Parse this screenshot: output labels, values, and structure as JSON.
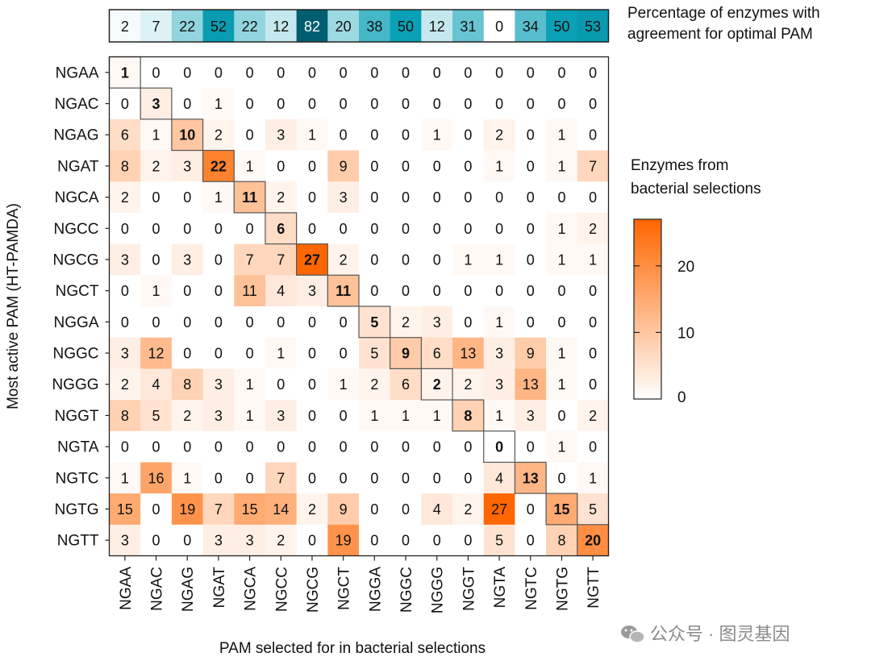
{
  "chart_data": {
    "type": "heatmap",
    "xlabel": "PAM selected for in bacterial selections",
    "ylabel": "Most active PAM (HT-PAMDA)",
    "categories": [
      "NGAA",
      "NGAC",
      "NGAG",
      "NGAT",
      "NGCA",
      "NGCC",
      "NGCG",
      "NGCT",
      "NGGA",
      "NGGC",
      "NGGG",
      "NGGT",
      "NGTA",
      "NGTC",
      "NGTG",
      "NGTT"
    ],
    "matrix": [
      [
        1,
        0,
        0,
        0,
        0,
        0,
        0,
        0,
        0,
        0,
        0,
        0,
        0,
        0,
        0,
        0
      ],
      [
        0,
        3,
        0,
        1,
        0,
        0,
        0,
        0,
        0,
        0,
        0,
        0,
        0,
        0,
        0,
        0
      ],
      [
        6,
        1,
        10,
        2,
        0,
        3,
        1,
        0,
        0,
        0,
        1,
        0,
        2,
        0,
        1,
        0
      ],
      [
        8,
        2,
        3,
        22,
        1,
        0,
        0,
        9,
        0,
        0,
        0,
        0,
        1,
        0,
        1,
        7
      ],
      [
        2,
        0,
        0,
        1,
        11,
        2,
        0,
        3,
        0,
        0,
        0,
        0,
        0,
        0,
        0,
        0
      ],
      [
        0,
        0,
        0,
        0,
        0,
        6,
        0,
        0,
        0,
        0,
        0,
        0,
        0,
        0,
        1,
        2
      ],
      [
        3,
        0,
        3,
        0,
        7,
        7,
        27,
        2,
        0,
        0,
        0,
        1,
        1,
        0,
        1,
        1
      ],
      [
        0,
        1,
        0,
        0,
        11,
        4,
        3,
        11,
        0,
        0,
        0,
        0,
        0,
        0,
        0,
        0
      ],
      [
        0,
        0,
        0,
        0,
        0,
        0,
        0,
        0,
        5,
        2,
        3,
        0,
        1,
        0,
        0,
        0
      ],
      [
        3,
        12,
        0,
        0,
        0,
        1,
        0,
        0,
        5,
        9,
        6,
        13,
        3,
        9,
        1,
        0
      ],
      [
        2,
        4,
        8,
        3,
        1,
        0,
        0,
        1,
        2,
        6,
        2,
        2,
        3,
        13,
        1,
        0
      ],
      [
        8,
        5,
        2,
        3,
        1,
        3,
        0,
        0,
        1,
        1,
        1,
        8,
        1,
        3,
        0,
        2
      ],
      [
        0,
        0,
        0,
        0,
        0,
        0,
        0,
        0,
        0,
        0,
        0,
        0,
        0,
        0,
        1,
        0
      ],
      [
        1,
        16,
        1,
        0,
        0,
        7,
        0,
        0,
        0,
        0,
        0,
        0,
        4,
        13,
        0,
        1
      ],
      [
        15,
        0,
        19,
        7,
        15,
        14,
        2,
        9,
        0,
        0,
        4,
        2,
        27,
        0,
        15,
        5
      ],
      [
        3,
        0,
        0,
        3,
        3,
        2,
        0,
        19,
        0,
        0,
        0,
        0,
        5,
        0,
        8,
        20
      ]
    ],
    "diagonal_highlighted": true,
    "colorscale": {
      "low": "#ffffff",
      "high": "#ff6600",
      "range": [
        0,
        27
      ]
    },
    "colorbar": {
      "title_lines": [
        "Enzymes from",
        "bacterial selections"
      ],
      "ticks": [
        "0",
        "10",
        "20"
      ],
      "tick_values": [
        0,
        10,
        20
      ]
    },
    "agreement": {
      "title_lines": [
        "Percentage of enzymes with",
        "agreement for optimal PAM"
      ],
      "values": [
        2,
        7,
        22,
        52,
        22,
        12,
        82,
        20,
        38,
        50,
        12,
        31,
        0,
        34,
        50,
        53
      ],
      "colorscale": {
        "low": "#ffffff",
        "mid": "#0aa0b5",
        "high": "#005e70",
        "range": [
          0,
          82
        ]
      }
    }
  },
  "watermark": {
    "text": "公众号 · 图灵基因",
    "icon": "wechat-icon"
  }
}
